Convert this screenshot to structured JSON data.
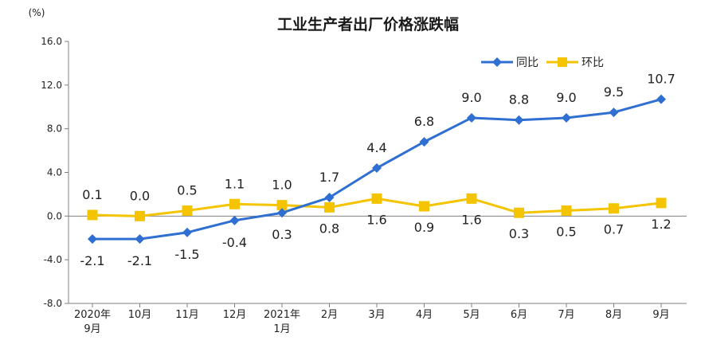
{
  "chart_data": {
    "type": "line",
    "title": "工业生产者出厂价格涨跌幅",
    "unit_label": "(%)",
    "ylim": [
      -8.0,
      16.0
    ],
    "y_ticks": [
      "16.0",
      "12.0",
      "8.0",
      "4.0",
      "0.0",
      "-4.0",
      "-8.0"
    ],
    "y_tick_values": [
      16,
      12,
      8,
      4,
      0,
      -4,
      -8
    ],
    "categories": [
      [
        "2020年",
        "9月"
      ],
      [
        "10月"
      ],
      [
        "11月"
      ],
      [
        "12月"
      ],
      [
        "2021年",
        "1月"
      ],
      [
        "2月"
      ],
      [
        "3月"
      ],
      [
        "4月"
      ],
      [
        "5月"
      ],
      [
        "6月"
      ],
      [
        "7月"
      ],
      [
        "8月"
      ],
      [
        "9月"
      ]
    ],
    "legend_position": "top-right",
    "series": [
      {
        "name": "同比",
        "color": "#2e6fd1",
        "marker": "diamond",
        "values": [
          -2.1,
          -2.1,
          -1.5,
          -0.4,
          0.3,
          1.7,
          4.4,
          6.8,
          9.0,
          8.8,
          9.0,
          9.5,
          10.7
        ],
        "labels": [
          "-2.1",
          "-2.1",
          "-1.5",
          "-0.4",
          "0.3",
          "1.7",
          "4.4",
          "6.8",
          "9.0",
          "8.8",
          "9.0",
          "9.5",
          "10.7"
        ]
      },
      {
        "name": "环比",
        "color": "#f5c400",
        "marker": "square",
        "values": [
          0.1,
          0.0,
          0.5,
          1.1,
          1.0,
          0.8,
          1.6,
          0.9,
          1.6,
          0.3,
          0.5,
          0.7,
          1.2
        ],
        "labels": [
          "0.1",
          "0.0",
          "0.5",
          "1.1",
          "1.0",
          "0.8",
          "1.6",
          "0.9",
          "1.6",
          "0.3",
          "0.5",
          "0.7",
          "1.2"
        ]
      }
    ]
  }
}
